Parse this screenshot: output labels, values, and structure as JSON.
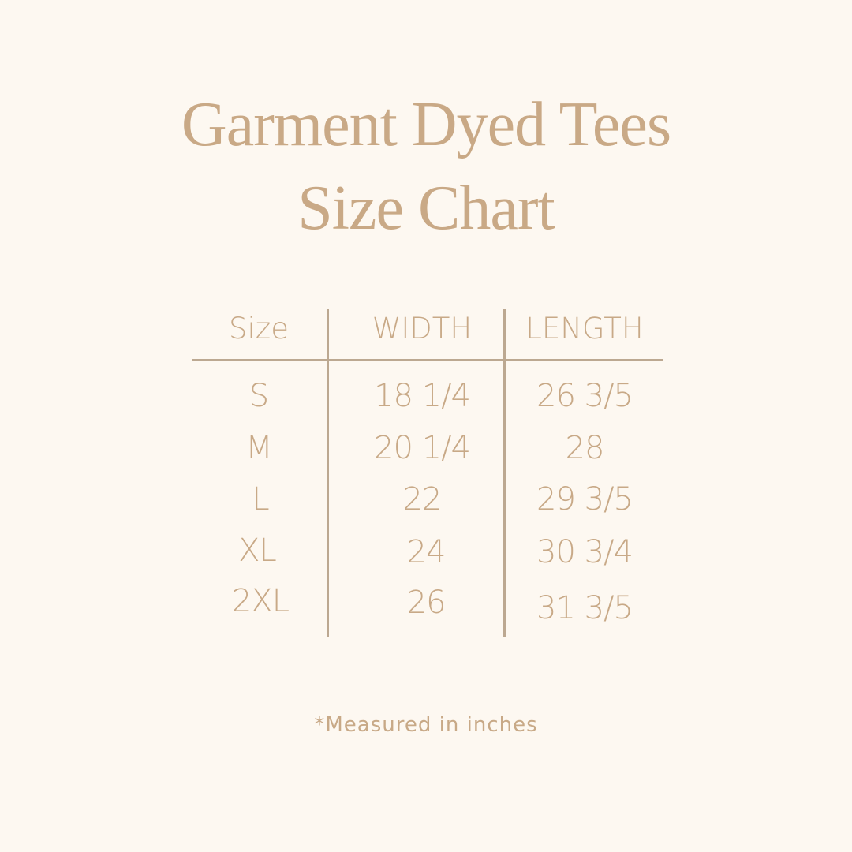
{
  "title": {
    "line1": "Garment Dyed Tees",
    "line2": "Size Chart"
  },
  "table": {
    "headers": [
      "Size",
      "WIDTH",
      "LENGTH"
    ],
    "rows": [
      [
        "S",
        "18 1/4",
        "26 3/5"
      ],
      [
        "M",
        "20 1/4",
        "28"
      ],
      [
        "L",
        "22",
        "29 3/5"
      ],
      [
        "XL",
        "24",
        "30 3/4"
      ],
      [
        "2XL",
        "26",
        "31 3/5"
      ]
    ]
  },
  "footnote": "*Measured in inches",
  "colors": {
    "background": "#fdf8f1",
    "text": "#c8a987",
    "rule": "#bca891"
  }
}
